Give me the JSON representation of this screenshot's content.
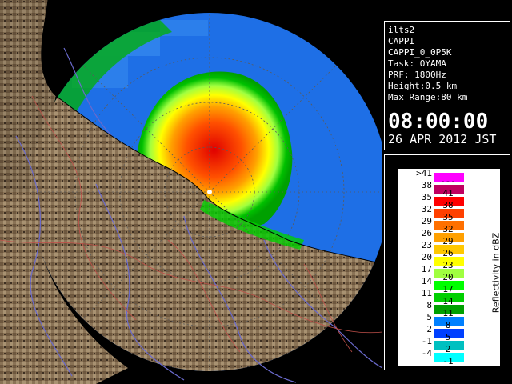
{
  "radar_info": {
    "site": "ilts2",
    "product": "CAPPI",
    "product_id": "CAPPI_0_0P5K",
    "task": "Task: OYAMA",
    "prf": "PRF: 1800Hz",
    "height": "Height:0.5 km",
    "max_range": "Max Range:80 km",
    "time": "08:00:00",
    "date": "26 APR 2012 JST"
  },
  "legend": {
    "title": "Reflectivity in dBZ",
    "rows": [
      {
        "low": ">41",
        "high": "---",
        "color": "#ff00ff"
      },
      {
        "low": "38",
        "high": "41",
        "color": "#c00060"
      },
      {
        "low": "35",
        "high": "38",
        "color": "#ff0000"
      },
      {
        "low": "32",
        "high": "35",
        "color": "#ff4000"
      },
      {
        "low": "29",
        "high": "32",
        "color": "#ff7000"
      },
      {
        "low": "26",
        "high": "29",
        "color": "#ffa000"
      },
      {
        "low": "23",
        "high": "26",
        "color": "#ffc800"
      },
      {
        "low": "20",
        "high": "23",
        "color": "#ffff00"
      },
      {
        "low": "17",
        "high": "20",
        "color": "#a0ff40"
      },
      {
        "low": "14",
        "high": "17",
        "color": "#00ff00"
      },
      {
        "low": "11",
        "high": "14",
        "color": "#00d000"
      },
      {
        "low": "8",
        "high": "11",
        "color": "#00a000"
      },
      {
        "low": "5",
        "high": "8",
        "color": "#0080ff"
      },
      {
        "low": "2",
        "high": "5",
        "color": "#0040ff"
      },
      {
        "low": "-1",
        "high": "2",
        "color": "#00c0c0"
      },
      {
        "low": "-4",
        "high": "-1",
        "color": "#00ffff"
      }
    ]
  },
  "colors": {
    "coverage": "#1e6fe6",
    "background": "#000000",
    "terrain": "#8a7356",
    "river": "#6a6acc",
    "boundary": "#c0504a"
  }
}
